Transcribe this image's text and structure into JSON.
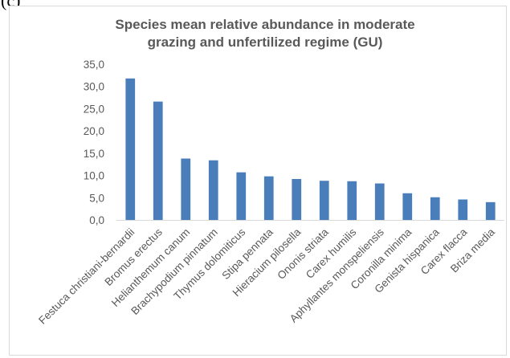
{
  "panel_label": "(c)",
  "chart_data": {
    "type": "bar",
    "title_lines": [
      "Species mean relative abundance in moderate",
      "grazing and unfertilized regime (GU)"
    ],
    "xlabel": "",
    "ylabel": "",
    "ylim": [
      0,
      35
    ],
    "y_ticks": [
      "0,0",
      "5,0",
      "10,0",
      "15,0",
      "20,0",
      "25,0",
      "30,0",
      "35,0"
    ],
    "grid": false,
    "legend": "none",
    "bar_color": "#4a7ebb",
    "categories": [
      "Festuca christiani-bernardii",
      "Bromus erectus",
      "Helianthemum canum",
      "Brachypodium pinnatum",
      "Thymus dolomiticus",
      "Stipa pennata",
      "Hieracium pilosella",
      "Ononis striata",
      "Carex humilis",
      "Aphyllantes monspeliensis",
      "Coronilla minima",
      "Genista hispanica",
      "Carex flacca",
      "Briza media"
    ],
    "values": [
      31.8,
      26.6,
      13.8,
      13.4,
      10.7,
      9.8,
      9.2,
      8.8,
      8.7,
      8.2,
      6.0,
      5.1,
      4.6,
      4.0
    ]
  }
}
